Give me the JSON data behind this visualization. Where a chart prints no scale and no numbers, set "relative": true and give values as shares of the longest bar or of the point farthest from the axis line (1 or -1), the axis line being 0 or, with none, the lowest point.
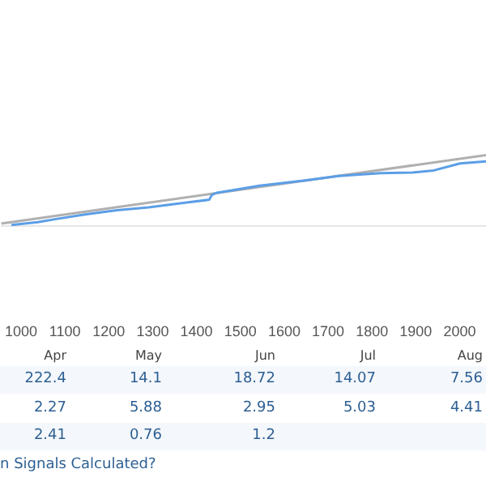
{
  "chart_data": [
    {
      "type": "line",
      "relative": true,
      "xlim": [
        955,
        2060
      ],
      "xticks": [
        1000,
        1100,
        1200,
        1300,
        1400,
        1500,
        1600,
        1700,
        1800,
        1900,
        2000
      ],
      "series": [
        {
          "color": "#b0b0b0",
          "x": [
            955,
            2060
          ],
          "values": [
            0.02,
            1
          ]
        },
        {
          "color": "#5b9ee6",
          "x": [
            978,
            1038,
            1086,
            1146,
            1219,
            1291,
            1363,
            1429,
            1435,
            1447,
            1544,
            1652,
            1724,
            1820,
            1892,
            1941,
            2001,
            2060
          ],
          "values": [
            0,
            0.04,
            0.09,
            0.15,
            0.21,
            0.25,
            0.31,
            0.36,
            0.43,
            0.46,
            0.56,
            0.64,
            0.7,
            0.74,
            0.75,
            0.78,
            0.88,
            0.91
          ]
        }
      ]
    },
    {
      "type": "other",
      "categories": [
        "Apr",
        "May",
        "Jun",
        "Jul",
        "Aug"
      ],
      "annotations": [
        "n Signals Calculated?",
        "222.4",
        "14.1",
        "18.72",
        "14.07",
        "7.56",
        "2.27",
        "5.88",
        "2.95",
        "5.03",
        "4.41",
        "2.41",
        "0.76",
        "1.2"
      ]
    }
  ]
}
